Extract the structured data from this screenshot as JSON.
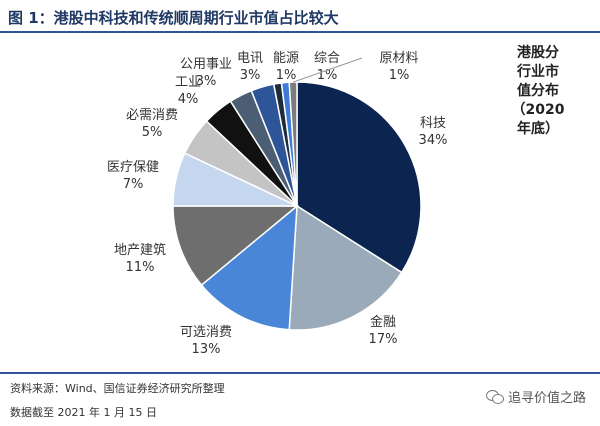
{
  "header": {
    "title": "图 1：港股中科技和传统顺周期行业市值占比较大"
  },
  "side_note": {
    "lines": [
      "港股分",
      "行业市",
      "值分布",
      "（2020",
      "年底）"
    ]
  },
  "chart_data": {
    "type": "pie",
    "title": "",
    "start_angle_deg": 0,
    "direction": "clockwise",
    "slices": [
      {
        "label": "科技",
        "value": 34,
        "value_label": "34%",
        "color": "#0b2450"
      },
      {
        "label": "金融",
        "value": 17,
        "value_label": "17%",
        "color": "#9aaab8"
      },
      {
        "label": "可选消费",
        "value": 13,
        "value_label": "13%",
        "color": "#4a86d8"
      },
      {
        "label": "地产建筑",
        "value": 11,
        "value_label": "11%",
        "color": "#6e6e6e"
      },
      {
        "label": "医疗保健",
        "value": 7,
        "value_label": "7%",
        "color": "#c5d7ef"
      },
      {
        "label": "必需消费",
        "value": 5,
        "value_label": "5%",
        "color": "#c4c4c4"
      },
      {
        "label": "工业",
        "value": 4,
        "value_label": "4%",
        "color": "#111111"
      },
      {
        "label": "公用事业",
        "value": 3,
        "value_label": "3%",
        "color": "#4b5e74"
      },
      {
        "label": "电讯",
        "value": 3,
        "value_label": "3%",
        "color": "#2e5597"
      },
      {
        "label": "能源",
        "value": 1,
        "value_label": "1%",
        "color": "#1e2b3a"
      },
      {
        "label": "综合",
        "value": 1,
        "value_label": "1%",
        "color": "#3d7bd8"
      },
      {
        "label": "原材料",
        "value": 1,
        "value_label": "1%",
        "color": "#7c7c7c"
      }
    ]
  },
  "footer": {
    "source": "资料来源：Wind、国信证券经济研究所整理",
    "as_of": "数据截至 2021 年 1 月 15 日",
    "watermark": "追寻价值之路"
  }
}
